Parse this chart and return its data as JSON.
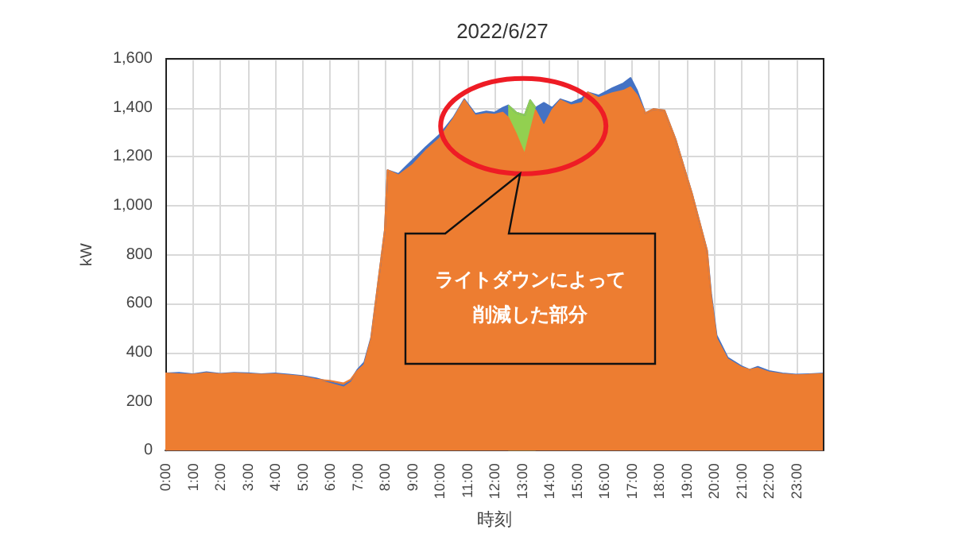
{
  "chart_data": {
    "type": "area",
    "title": "2022/6/27",
    "xlabel": "時刻",
    "ylabel": "kW",
    "x": [
      0,
      0.5,
      1,
      1.5,
      2,
      2.5,
      3,
      3.5,
      4,
      4.5,
      5,
      5.5,
      6,
      6.5,
      6.75,
      7,
      7.25,
      7.5,
      7.75,
      8,
      8.1,
      8.5,
      9,
      9.5,
      10,
      10.5,
      10.9,
      11.3,
      11.7,
      12,
      12.3,
      12.5,
      12.8,
      13.1,
      13.3,
      13.5,
      13.8,
      14.1,
      14.4,
      14.8,
      15.2,
      15.4,
      15.8,
      16.3,
      16.7,
      16.96,
      17.2,
      17.5,
      17.8,
      18.2,
      18.6,
      19.2,
      19.75,
      19.9,
      20.1,
      20.5,
      21,
      21.3,
      21.6,
      22,
      22.5,
      23,
      23.5,
      24
    ],
    "series": [
      {
        "color": "#4472c4",
        "values": [
          315,
          318,
          312,
          320,
          314,
          318,
          316,
          312,
          315,
          310,
          305,
          295,
          280,
          265,
          285,
          330,
          360,
          460,
          680,
          900,
          1145,
          1130,
          1185,
          1240,
          1290,
          1360,
          1435,
          1375,
          1385,
          1380,
          1400,
          1410,
          1380,
          1370,
          1431,
          1400,
          1420,
          1400,
          1435,
          1420,
          1440,
          1463,
          1450,
          1480,
          1500,
          1522,
          1470,
          1378,
          1395,
          1389,
          1272,
          1050,
          817,
          640,
          470,
          380,
          345,
          330,
          342,
          325,
          315,
          310,
          312,
          315
        ]
      },
      {
        "color": "#92d050",
        "values": [
          null,
          null,
          null,
          null,
          null,
          null,
          null,
          null,
          null,
          null,
          null,
          null,
          null,
          null,
          null,
          null,
          null,
          null,
          null,
          null,
          null,
          null,
          null,
          null,
          null,
          null,
          null,
          null,
          null,
          null,
          null,
          1410,
          1380,
          1370,
          1431,
          1400,
          null,
          null,
          null,
          null,
          null,
          null,
          null,
          null,
          null,
          null,
          null,
          null,
          null,
          null,
          null,
          null,
          null,
          null,
          null,
          null,
          null,
          null,
          null,
          null,
          null,
          null,
          null,
          null
        ]
      },
      {
        "color": "#ed7d31",
        "values": [
          315,
          312,
          310,
          316,
          312,
          315,
          313,
          310,
          312,
          307,
          302,
          290,
          285,
          275,
          290,
          325,
          350,
          455,
          680,
          900,
          1145,
          1124,
          1165,
          1225,
          1275,
          1355,
          1431,
          1368,
          1375,
          1372,
          1380,
          1360,
          1290,
          1209,
          1300,
          1389,
          1325,
          1390,
          1431,
          1410,
          1420,
          1463,
          1440,
          1460,
          1470,
          1484,
          1450,
          1378,
          1395,
          1389,
          1272,
          1050,
          817,
          627,
          457,
          373,
          340,
          330,
          336,
          320,
          312,
          308,
          310,
          313
        ]
      }
    ],
    "xlim": [
      0,
      24
    ],
    "xticks": [
      {
        "value": 0,
        "label": "0:00"
      },
      {
        "value": 1,
        "label": "1:00"
      },
      {
        "value": 2,
        "label": "2:00"
      },
      {
        "value": 3,
        "label": "3:00"
      },
      {
        "value": 4,
        "label": "4:00"
      },
      {
        "value": 5,
        "label": "5:00"
      },
      {
        "value": 6,
        "label": "6:00"
      },
      {
        "value": 7,
        "label": "7:00"
      },
      {
        "value": 8,
        "label": "8:00"
      },
      {
        "value": 9,
        "label": "9:00"
      },
      {
        "value": 10,
        "label": "10:00"
      },
      {
        "value": 11,
        "label": "11:00"
      },
      {
        "value": 12,
        "label": "12:00"
      },
      {
        "value": 13,
        "label": "13:00"
      },
      {
        "value": 14,
        "label": "14:00"
      },
      {
        "value": 15,
        "label": "15:00"
      },
      {
        "value": 16,
        "label": "16:00"
      },
      {
        "value": 17,
        "label": "17:00"
      },
      {
        "value": 18,
        "label": "18:00"
      },
      {
        "value": 19,
        "label": "19:00"
      },
      {
        "value": 20,
        "label": "20:00"
      },
      {
        "value": 21,
        "label": "21:00"
      },
      {
        "value": 22,
        "label": "22:00"
      },
      {
        "value": 23,
        "label": "23:00"
      }
    ],
    "ylim": [
      0,
      1600
    ],
    "yticks": [
      {
        "value": 0,
        "label": "0"
      },
      {
        "value": 200,
        "label": "200"
      },
      {
        "value": 400,
        "label": "400"
      },
      {
        "value": 600,
        "label": "600"
      },
      {
        "value": 800,
        "label": "800"
      },
      {
        "value": 1000,
        "label": "1,000"
      },
      {
        "value": 1200,
        "label": "1,200"
      },
      {
        "value": 1400,
        "label": "1,400"
      },
      {
        "value": 1600,
        "label": "1,600"
      }
    ],
    "grid": true,
    "marker": "none",
    "annotations": [
      "ライトダウンによって削減した部分"
    ]
  }
}
